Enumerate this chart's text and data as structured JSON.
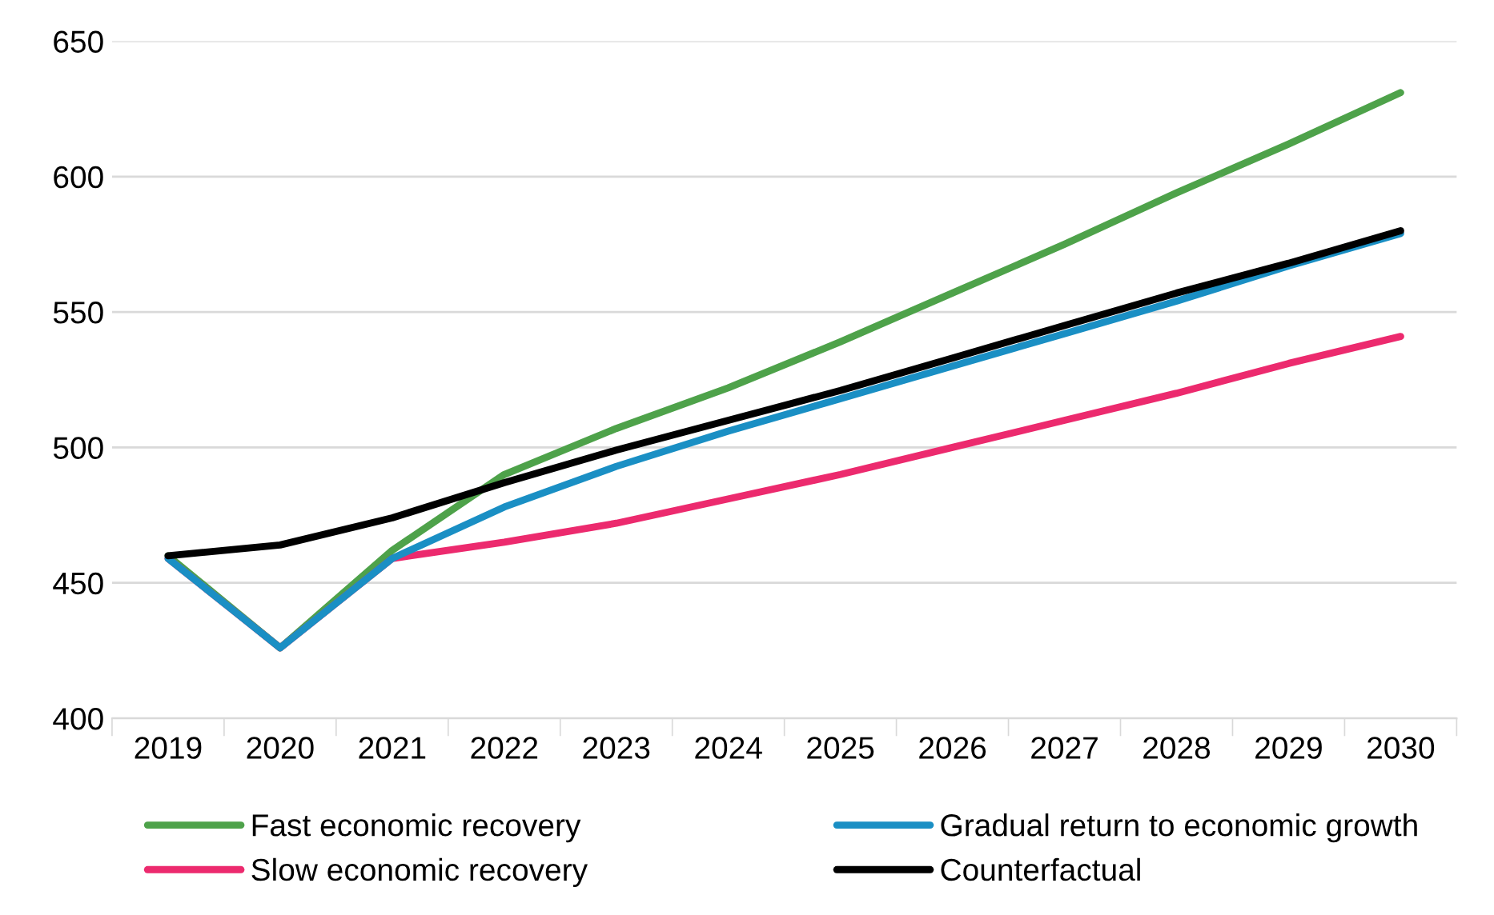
{
  "chart_data": {
    "type": "line",
    "categories": [
      "2019",
      "2020",
      "2021",
      "2022",
      "2023",
      "2024",
      "2025",
      "2026",
      "2027",
      "2028",
      "2029",
      "2030"
    ],
    "series": [
      {
        "name": "Fast economic recovery",
        "color": "#4ea24a",
        "values": [
          460,
          426,
          462,
          490,
          507,
          522,
          539,
          557,
          575,
          594,
          612,
          631
        ]
      },
      {
        "name": "Slow economic recovery",
        "color": "#ec2a6e",
        "values": [
          459,
          426,
          459,
          465,
          472,
          481,
          490,
          500,
          510,
          520,
          531,
          541
        ]
      },
      {
        "name": "Gradual return to economic growth",
        "color": "#1a8fc4",
        "values": [
          459,
          426,
          459,
          478,
          493,
          506,
          518,
          530,
          542,
          554,
          567,
          579
        ]
      },
      {
        "name": "Counterfactual",
        "color": "#000000",
        "values": [
          460,
          464,
          474,
          487,
          499,
          510,
          521,
          533,
          545,
          557,
          568,
          580
        ]
      }
    ],
    "ylim": [
      400,
      650
    ],
    "yticks": [
      400,
      450,
      500,
      550,
      600,
      650
    ],
    "grid": "y",
    "legend": "bottom",
    "marker": "none",
    "line_style": "solid"
  }
}
